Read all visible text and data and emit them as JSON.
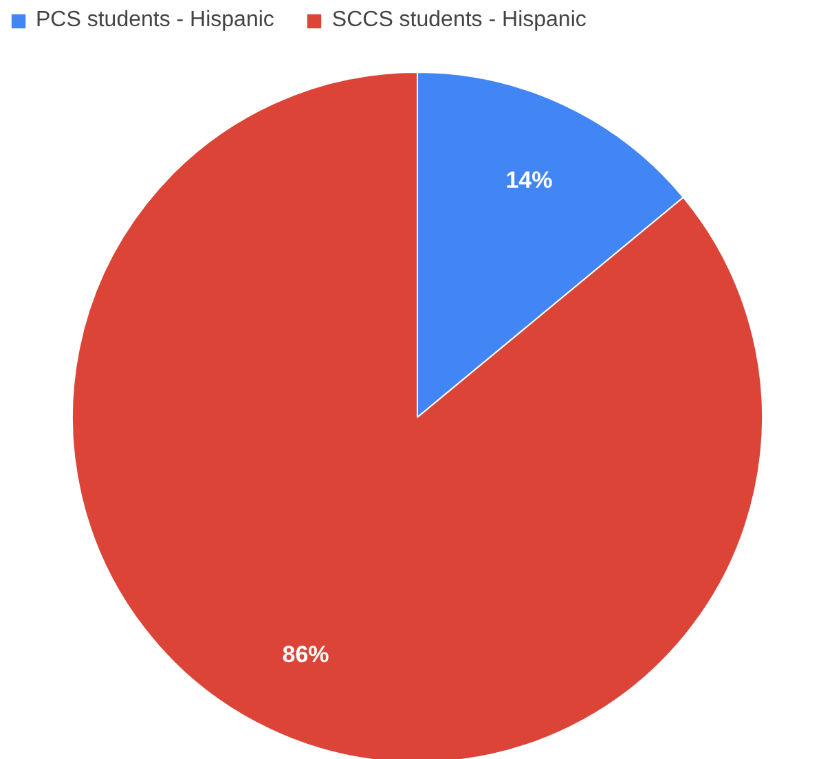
{
  "chart_data": {
    "type": "pie",
    "categories": [
      "PCS students - Hispanic",
      "SCCS students - Hispanic"
    ],
    "values": [
      14,
      86
    ],
    "colors": [
      "#4285f4",
      "#db4437"
    ],
    "value_labels": [
      "14%",
      "86%"
    ],
    "legend": "top"
  }
}
